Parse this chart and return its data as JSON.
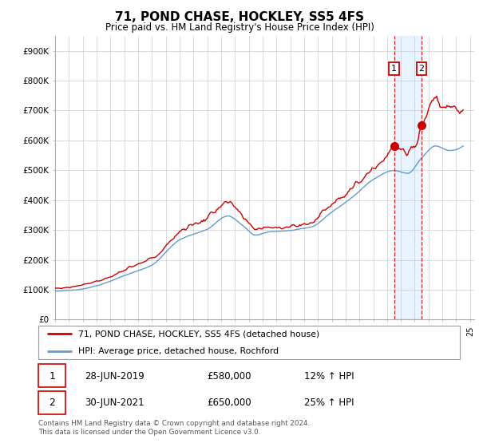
{
  "title": "71, POND CHASE, HOCKLEY, SS5 4FS",
  "subtitle": "Price paid vs. HM Land Registry's House Price Index (HPI)",
  "footer": "Contains HM Land Registry data © Crown copyright and database right 2024.\nThis data is licensed under the Open Government Licence v3.0.",
  "legend_line1": "71, POND CHASE, HOCKLEY, SS5 4FS (detached house)",
  "legend_line2": "HPI: Average price, detached house, Rochford",
  "transaction1_label": "28-JUN-2019",
  "transaction1_price": "£580,000",
  "transaction1_hpi": "12% ↑ HPI",
  "transaction2_label": "30-JUN-2021",
  "transaction2_price": "£650,000",
  "transaction2_hpi": "25% ↑ HPI",
  "red_color": "#cc0000",
  "blue_color": "#6699cc",
  "shade_color": "#ddeeff",
  "grid_color": "#cccccc",
  "background_color": "#ffffff",
  "ylim": [
    0,
    950000
  ],
  "yticks": [
    0,
    100000,
    200000,
    300000,
    400000,
    500000,
    600000,
    700000,
    800000,
    900000
  ],
  "ytick_labels": [
    "£0",
    "£100K",
    "£200K",
    "£300K",
    "£400K",
    "£500K",
    "£600K",
    "£700K",
    "£800K",
    "£900K"
  ],
  "transaction1_x": 2019.5,
  "transaction1_y": 580000,
  "transaction2_x": 2021.5,
  "transaction2_y": 650000,
  "xlim_left": 1995,
  "xlim_right": 2025.3
}
